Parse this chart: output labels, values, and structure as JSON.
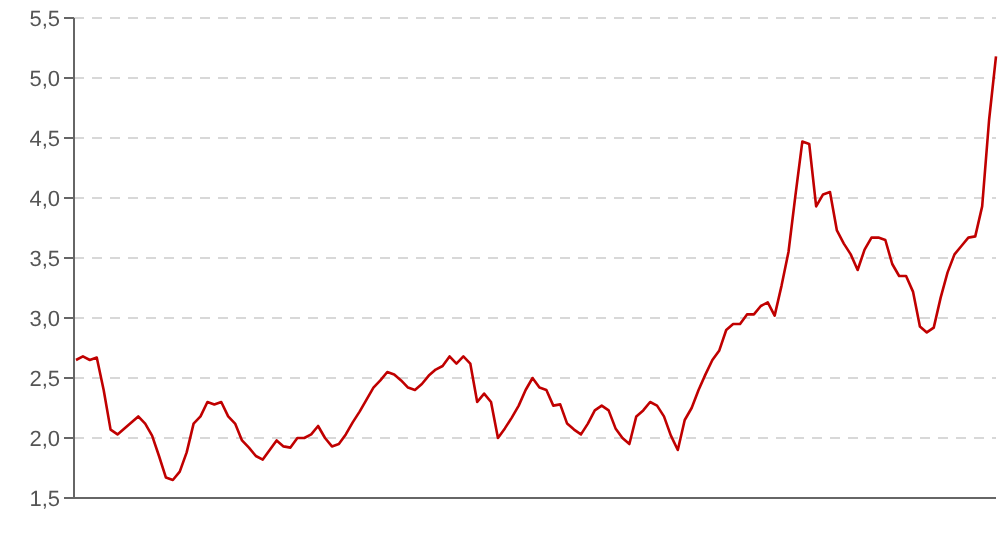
{
  "chart_data": {
    "type": "line",
    "categories": [
      null,
      null,
      null,
      null,
      null,
      null,
      null,
      null,
      null,
      null,
      null,
      null,
      null,
      null,
      null,
      null,
      null,
      null,
      null,
      null,
      null,
      null,
      null,
      null,
      null,
      null,
      null,
      null,
      null,
      null,
      null,
      null,
      null,
      null,
      null,
      null,
      null,
      null,
      null,
      null,
      null,
      null,
      null,
      null,
      null,
      null,
      null,
      null,
      null,
      null,
      null,
      null,
      null,
      null,
      null,
      null,
      null,
      null,
      null,
      null,
      null,
      null,
      null,
      null,
      null,
      null,
      null,
      null,
      null,
      null,
      null,
      null,
      null,
      null,
      null,
      null,
      null,
      null,
      null,
      null,
      null,
      null,
      null,
      null,
      null,
      null,
      null,
      null,
      null,
      null,
      null,
      null,
      null,
      null,
      null,
      null,
      null,
      null,
      null,
      null,
      null,
      null,
      null,
      null,
      null,
      null,
      null,
      null,
      null,
      null,
      null,
      null,
      null,
      null,
      null,
      null,
      null,
      null,
      null,
      null,
      null,
      null,
      null,
      null,
      null,
      null,
      null,
      null,
      null,
      null,
      null,
      null,
      null,
      null
    ],
    "series": [
      {
        "color": "#c00000",
        "values": [
          2.65,
          2.68,
          2.65,
          2.67,
          2.4,
          2.07,
          2.03,
          2.08,
          2.13,
          2.18,
          2.12,
          2.02,
          1.85,
          1.67,
          1.65,
          1.72,
          1.88,
          2.12,
          2.18,
          2.3,
          2.28,
          2.3,
          2.18,
          2.12,
          1.98,
          1.92,
          1.85,
          1.82,
          1.9,
          1.98,
          1.93,
          1.92,
          2.0,
          2.0,
          2.03,
          2.1,
          2.0,
          1.93,
          1.95,
          2.03,
          2.13,
          2.22,
          2.32,
          2.42,
          2.48,
          2.55,
          2.53,
          2.48,
          2.42,
          2.4,
          2.45,
          2.52,
          2.57,
          2.6,
          2.68,
          2.62,
          2.68,
          2.62,
          2.3,
          2.37,
          2.3,
          2.0,
          2.08,
          2.17,
          2.27,
          2.4,
          2.5,
          2.42,
          2.4,
          2.27,
          2.28,
          2.12,
          2.07,
          2.03,
          2.12,
          2.23,
          2.27,
          2.23,
          2.08,
          2.0,
          1.95,
          2.18,
          2.23,
          2.3,
          2.27,
          2.18,
          2.02,
          1.9,
          2.15,
          2.25,
          2.4,
          2.53,
          2.65,
          2.73,
          2.9,
          2.95,
          2.95,
          3.03,
          3.03,
          3.1,
          3.13,
          3.02,
          3.27,
          3.55,
          4.02,
          4.47,
          4.45,
          3.93,
          4.03,
          4.05,
          3.73,
          3.62,
          3.53,
          3.4,
          3.57,
          3.67,
          3.67,
          3.65,
          3.45,
          3.35,
          3.35,
          3.22,
          2.93,
          2.88,
          2.92,
          3.17,
          3.38,
          3.53,
          3.6,
          3.67,
          3.68,
          3.93,
          4.65,
          5.18
        ]
      }
    ],
    "ylim": [
      1.5,
      5.5
    ],
    "yticks": [
      {
        "value": 1.5,
        "label": "1,5"
      },
      {
        "value": 2,
        "label": "2,0"
      },
      {
        "value": 2.5,
        "label": "2,5"
      },
      {
        "value": 3,
        "label": "3,0"
      },
      {
        "value": 3.5,
        "label": "3,5"
      },
      {
        "value": 4,
        "label": "4,0"
      },
      {
        "value": 4.5,
        "label": "4,5"
      },
      {
        "value": 5,
        "label": "5,0"
      },
      {
        "value": 5.5,
        "label": "5,5"
      }
    ],
    "grid": "y",
    "marker": "none",
    "line_style": "solid"
  }
}
